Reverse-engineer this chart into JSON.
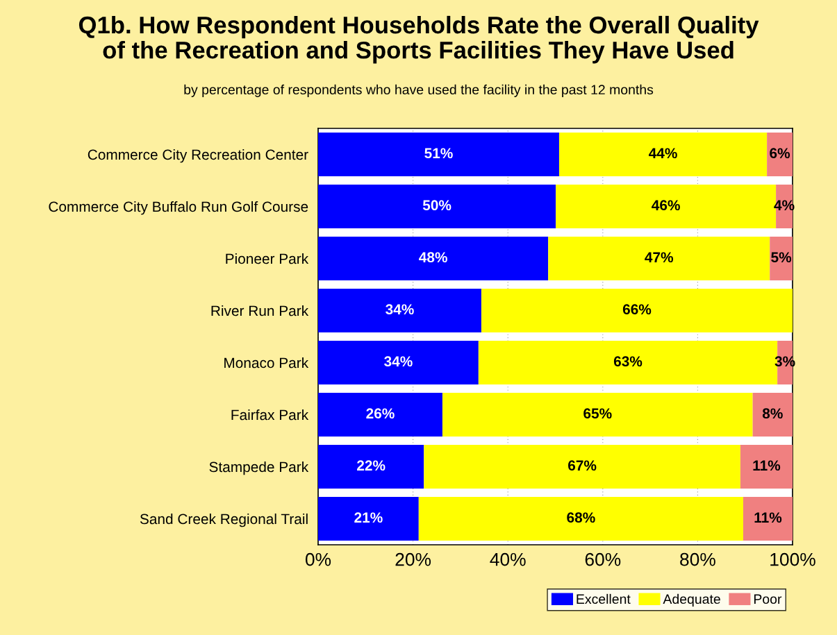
{
  "chart_data": {
    "type": "bar",
    "orientation": "horizontal",
    "stacked": true,
    "title": "Q1b. How Respondent Households Rate the Overall Quality\nof the Recreation and Sports Facilities They Have Used",
    "subtitle": "by percentage of respondents who have used the facility in the past 12 months",
    "categories": [
      "Commerce City Recreation Center",
      "Commerce City Buffalo Run Golf Course",
      "Pioneer Park",
      "River Run Park",
      "Monaco Park",
      "Fairfax Park",
      "Stampede Park",
      "Sand Creek Regional Trail"
    ],
    "series": [
      {
        "name": "Excellent",
        "color": "#0000ff",
        "values": [
          50.8,
          50.1,
          48.5,
          34.4,
          33.8,
          26.2,
          22.3,
          21.2
        ],
        "value_labels": [
          "51%",
          "50%",
          "48%",
          "34%",
          "34%",
          "26%",
          "22%",
          "21%"
        ]
      },
      {
        "name": "Adequate",
        "color": "#ffff00",
        "values": [
          43.8,
          46.4,
          46.7,
          65.6,
          63.0,
          65.4,
          66.7,
          68.4
        ],
        "value_labels": [
          "44%",
          "46%",
          "47%",
          "66%",
          "63%",
          "65%",
          "67%",
          "68%"
        ]
      },
      {
        "name": "Poor",
        "color": "#f08080",
        "values": [
          5.5,
          3.5,
          4.8,
          0,
          3.2,
          8.4,
          11.0,
          10.5
        ],
        "value_labels": [
          "6%",
          "4%",
          "5%",
          null,
          "3%",
          "8%",
          "11%",
          "11%"
        ]
      }
    ],
    "xlim": [
      0,
      100
    ],
    "xticks": [
      {
        "value": 0,
        "label": "0%"
      },
      {
        "value": 20,
        "label": "20%"
      },
      {
        "value": 40,
        "label": "40%"
      },
      {
        "value": 60,
        "label": "60%"
      },
      {
        "value": 80,
        "label": "80%"
      },
      {
        "value": 100,
        "label": "100%"
      }
    ],
    "grid": "x",
    "legend": "bottom right"
  }
}
